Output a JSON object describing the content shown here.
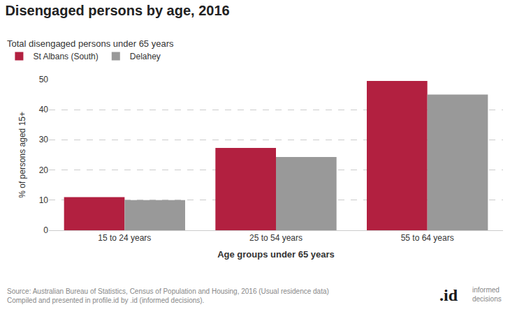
{
  "chart_data": {
    "type": "bar",
    "title": "Disengaged persons by age, 2016",
    "subtitle": "Total disengaged persons under 65 years",
    "categories": [
      "15 to 24 years",
      "25 to 54 years",
      "55 to 64 years"
    ],
    "series": [
      {
        "name": "St Albans (South)",
        "color": "#b22040",
        "values": [
          11.0,
          27.3,
          49.5
        ]
      },
      {
        "name": "Delahey",
        "color": "#999999",
        "values": [
          10.0,
          24.3,
          45.0
        ]
      }
    ],
    "ylabel": "% of persons aged 15+",
    "xlabel": "Age groups under 65 years",
    "ylim": [
      0,
      50
    ],
    "yticks": [
      0,
      10,
      20,
      30,
      40,
      50
    ],
    "grid": true,
    "legend": "top-left",
    "annotations": [
      "Source: Australian Bureau of Statistics, Census of Population and Housing, 2016 (Usual residence data)\nCompiled and presented in profile.id by .id (informed decisions).",
      ".id",
      "informed\ndecisions"
    ]
  }
}
